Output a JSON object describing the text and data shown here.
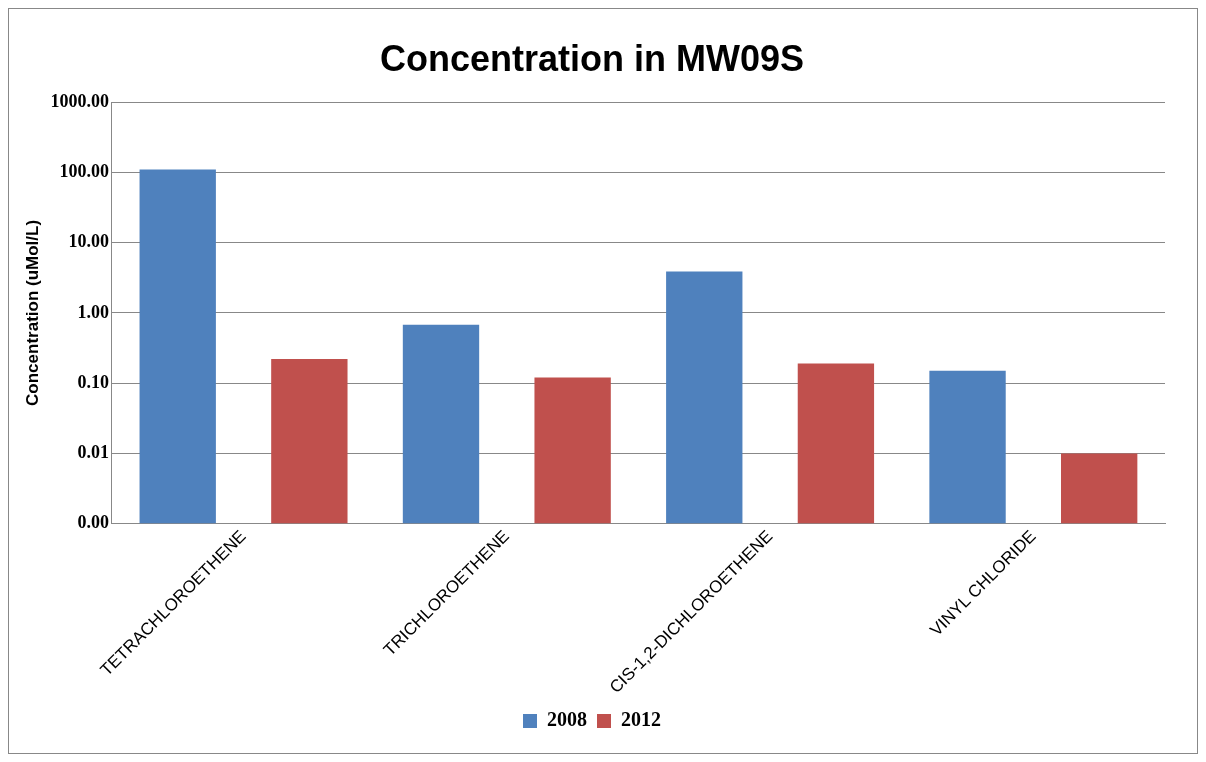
{
  "chart_data": {
    "type": "bar",
    "title": "Concentration in MW09S",
    "ylabel": "Concentration (uMol/L)",
    "categories": [
      "TETRACHLOROETHENE",
      "TRICHLOROETHENE",
      "CIS-1,2-DICHLOROETHENE",
      "VINYL CHLORIDE"
    ],
    "series": [
      {
        "name": "2008",
        "color": "#4f81bd",
        "values": [
          110,
          0.68,
          3.9,
          0.15
        ]
      },
      {
        "name": "2012",
        "color": "#c0504d",
        "values": [
          0.22,
          0.12,
          0.19,
          0.01
        ]
      }
    ],
    "log": true,
    "ylim": [
      0.001,
      1000
    ],
    "yticks": [
      {
        "value": 0.001,
        "label": "0.00"
      },
      {
        "value": 0.01,
        "label": "0.01"
      },
      {
        "value": 0.1,
        "label": "0.10"
      },
      {
        "value": 1,
        "label": "1.00"
      },
      {
        "value": 10,
        "label": "10.00"
      },
      {
        "value": 100,
        "label": "100.00"
      },
      {
        "value": 1000,
        "label": "1000.00"
      }
    ],
    "grid": "y",
    "legend": "bottom"
  }
}
